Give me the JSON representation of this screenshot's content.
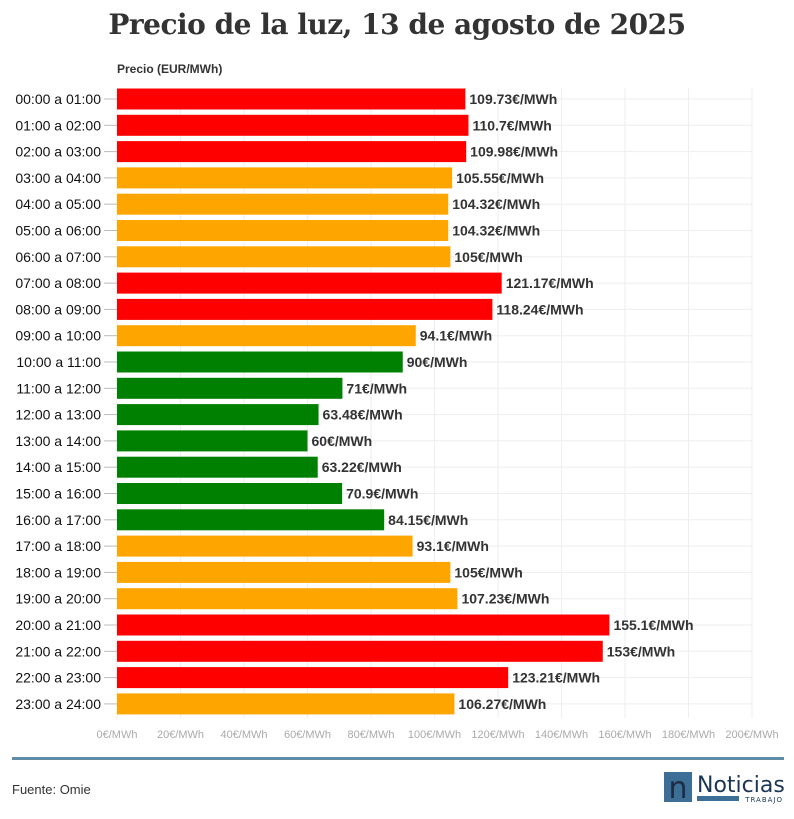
{
  "chart_data": {
    "type": "bar",
    "orientation": "horizontal",
    "title": "Precio de la luz, 13 de agosto de 2025",
    "xlabel": "",
    "ylabel": "Precio (EUR/MWh)",
    "xlim": [
      0,
      200
    ],
    "xticks": [
      "0€/MWh",
      "20€/MWh",
      "40€/MWh",
      "60€/MWh",
      "80€/MWh",
      "100€/MWh",
      "120€/MWh",
      "140€/MWh",
      "160€/MWh",
      "180€/MWh",
      "200€/MWh"
    ],
    "grid": true,
    "colors": {
      "high": "#ff0000",
      "mid": "#ffa500",
      "low": "#008000"
    },
    "categories": [
      "00:00 a 01:00",
      "01:00 a 02:00",
      "02:00 a 03:00",
      "03:00 a 04:00",
      "04:00 a 05:00",
      "05:00 a 06:00",
      "06:00 a 07:00",
      "07:00 a 08:00",
      "08:00 a 09:00",
      "09:00 a 10:00",
      "10:00 a 11:00",
      "11:00 a 12:00",
      "12:00 a 13:00",
      "13:00 a 14:00",
      "14:00 a 15:00",
      "15:00 a 16:00",
      "16:00 a 17:00",
      "17:00 a 18:00",
      "18:00 a 19:00",
      "19:00 a 20:00",
      "20:00 a 21:00",
      "21:00 a 22:00",
      "22:00 a 23:00",
      "23:00 a 24:00"
    ],
    "values": [
      109.73,
      110.7,
      109.98,
      105.55,
      104.32,
      104.32,
      105,
      121.17,
      118.24,
      94.1,
      90,
      71,
      63.48,
      60,
      63.22,
      70.9,
      84.15,
      93.1,
      105,
      107.23,
      155.1,
      153,
      123.21,
      106.27
    ],
    "levels": [
      "high",
      "high",
      "high",
      "mid",
      "mid",
      "mid",
      "mid",
      "high",
      "high",
      "mid",
      "low",
      "low",
      "low",
      "low",
      "low",
      "low",
      "low",
      "mid",
      "mid",
      "mid",
      "high",
      "high",
      "high",
      "mid"
    ],
    "labels": [
      "109.73€/MWh",
      "110.7€/MWh",
      "109.98€/MWh",
      "105.55€/MWh",
      "104.32€/MWh",
      "104.32€/MWh",
      "105€/MWh",
      "121.17€/MWh",
      "118.24€/MWh",
      "94.1€/MWh",
      "90€/MWh",
      "71€/MWh",
      "63.48€/MWh",
      "60€/MWh",
      "63.22€/MWh",
      "70.9€/MWh",
      "84.15€/MWh",
      "93.1€/MWh",
      "105€/MWh",
      "107.23€/MWh",
      "155.1€/MWh",
      "153€/MWh",
      "123.21€/MWh",
      "106.27€/MWh"
    ]
  },
  "footer": {
    "source": "Fuente: Omie",
    "logo_text": "Noticias",
    "logo_sub": "TRABAJO",
    "logo_letter": "n"
  }
}
